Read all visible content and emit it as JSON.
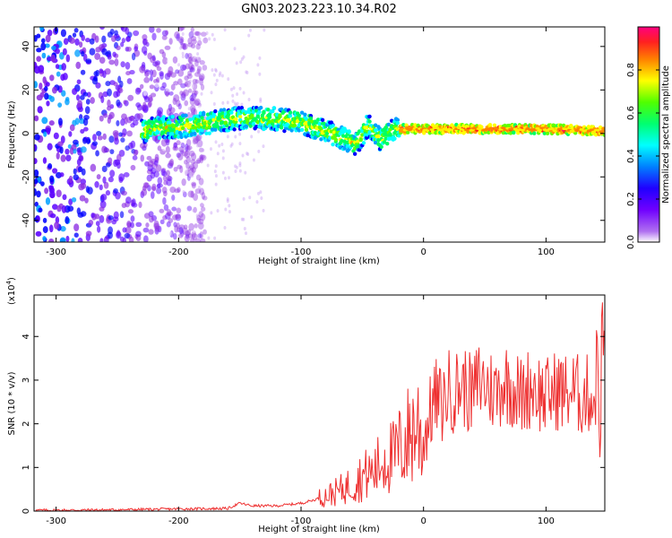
{
  "figure": {
    "title": "GN03.2023.223.10.34.R02"
  },
  "chart_data": [
    {
      "type": "heatmap",
      "title": "",
      "xlabel": "Height of straight line (km)",
      "ylabel": "Frequency (Hz)",
      "xlim": [
        -318,
        148
      ],
      "ylim": [
        -50,
        49
      ],
      "xticks": [
        -300,
        -200,
        -100,
        0,
        100
      ],
      "yticks": [
        -40,
        -20,
        0,
        20,
        40
      ],
      "colorbar": {
        "label": "Normalized spectral amplitude",
        "range": [
          0,
          1
        ],
        "ticks": [
          0.0,
          0.2,
          0.4,
          0.6,
          0.8
        ],
        "tick_labels": [
          "0.0",
          "0.2",
          "0.4",
          "0.6",
          "0.8"
        ],
        "colormap": [
          "#ffffff",
          "#8a2be2",
          "#5a00ff",
          "#0000ff",
          "#00a0ff",
          "#00ffff",
          "#00ff60",
          "#60ff00",
          "#ffff00",
          "#ff9900",
          "#ff2020",
          "#ff0088"
        ]
      },
      "ridge": [
        {
          "x": -225,
          "f": 2
        },
        {
          "x": -200,
          "f": 3
        },
        {
          "x": -175,
          "f": 5
        },
        {
          "x": -150,
          "f": 7
        },
        {
          "x": -125,
          "f": 7
        },
        {
          "x": -100,
          "f": 5
        },
        {
          "x": -75,
          "f": 0
        },
        {
          "x": -55,
          "f": -5
        },
        {
          "x": -45,
          "f": 4
        },
        {
          "x": -35,
          "f": -3
        },
        {
          "x": -25,
          "f": 2
        },
        {
          "x": 0,
          "f": 2
        },
        {
          "x": 50,
          "f": 2
        },
        {
          "x": 100,
          "f": 2
        },
        {
          "x": 148,
          "f": 1
        }
      ]
    },
    {
      "type": "line",
      "title": "",
      "xlabel": "Height of straight line (km)",
      "ylabel": "SNR (10 * v/v)",
      "y_multiplier": "(x10",
      "y_multiplier_exp": "4",
      "xlim": [
        -318,
        148
      ],
      "ylim": [
        0,
        4.95
      ],
      "xticks": [
        -300,
        -200,
        -100,
        0,
        100
      ],
      "yticks": [
        0,
        1,
        2,
        3,
        4
      ],
      "series": [
        {
          "color": "#ee3030",
          "x": [
            -318,
            -300,
            -250,
            -200,
            -160,
            -150,
            -140,
            -120,
            -100,
            -90,
            -80,
            -70,
            -60,
            -50,
            -40,
            -35,
            -30,
            -25,
            -20,
            -15,
            -10,
            -5,
            0,
            5,
            10,
            15,
            20,
            25,
            30,
            35,
            40,
            45,
            50,
            55,
            60,
            65,
            70,
            75,
            80,
            85,
            90,
            95,
            100,
            105,
            110,
            115,
            120,
            125,
            130,
            135,
            140,
            142,
            144,
            146,
            148
          ],
          "y": [
            0.02,
            0.02,
            0.03,
            0.05,
            0.06,
            0.18,
            0.12,
            0.12,
            0.18,
            0.25,
            0.35,
            0.45,
            0.6,
            0.8,
            0.9,
            1.1,
            1.3,
            1.2,
            1.4,
            1.6,
            1.8,
            2.0,
            1.6,
            2.2,
            2.6,
            2.4,
            2.8,
            2.7,
            2.9,
            2.8,
            2.6,
            3.0,
            2.9,
            2.8,
            2.7,
            3.0,
            2.9,
            2.8,
            2.6,
            2.8,
            2.9,
            2.7,
            2.6,
            2.7,
            2.8,
            2.7,
            2.75,
            2.7,
            2.6,
            2.7,
            2.5,
            3.8,
            1.5,
            4.5,
            2.9
          ]
        }
      ]
    }
  ]
}
